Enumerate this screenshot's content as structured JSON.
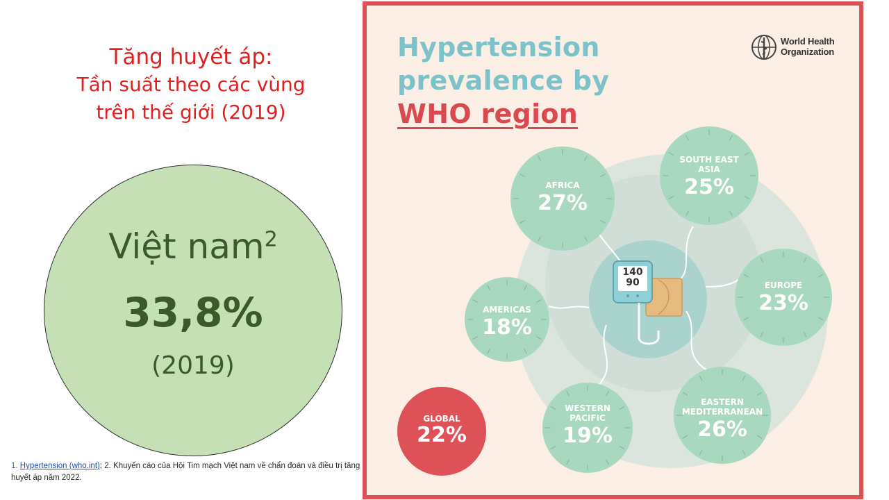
{
  "left": {
    "title_line1": "Tăng huyết áp:",
    "title_line2": "Tần suất theo các vùng",
    "title_line3": "trên thế giới (2019)",
    "country": "Việt nam",
    "country_ref": "2",
    "value": "33,8%",
    "year": "(2019)"
  },
  "footnote": {
    "ref1_num": "1.",
    "ref1_link": "Hypertension (who.int)",
    "ref2": "; 2. Khuyến cáo của Hội Tim mạch Việt nam về chẩn đoán và điều trị tăng huyết áp năm 2022."
  },
  "infographic": {
    "title_line1": "Hypertension",
    "title_line2": "prevalence by",
    "title_line3": "WHO region",
    "logo_line1": "World Health",
    "logo_line2": "Organization",
    "monitor_sys": "140",
    "monitor_dia": "90",
    "regions": [
      {
        "label": "AFRICA",
        "value": "27%"
      },
      {
        "label": "SOUTH EAST ASIA",
        "value": "25%"
      },
      {
        "label": "EUROPE",
        "value": "23%"
      },
      {
        "label": "EASTERN MEDITERRANEAN",
        "value": "26%"
      },
      {
        "label": "WESTERN PACIFIC",
        "value": "19%"
      },
      {
        "label": "AMERICAS",
        "value": "18%"
      }
    ],
    "global": {
      "label": "GLOBAL",
      "value": "22%"
    },
    "colors": {
      "region_fill": "#a8d8c0",
      "global_fill": "#dd5157",
      "frame": "#dd5157",
      "title_teal": "#7ec2c9"
    }
  }
}
